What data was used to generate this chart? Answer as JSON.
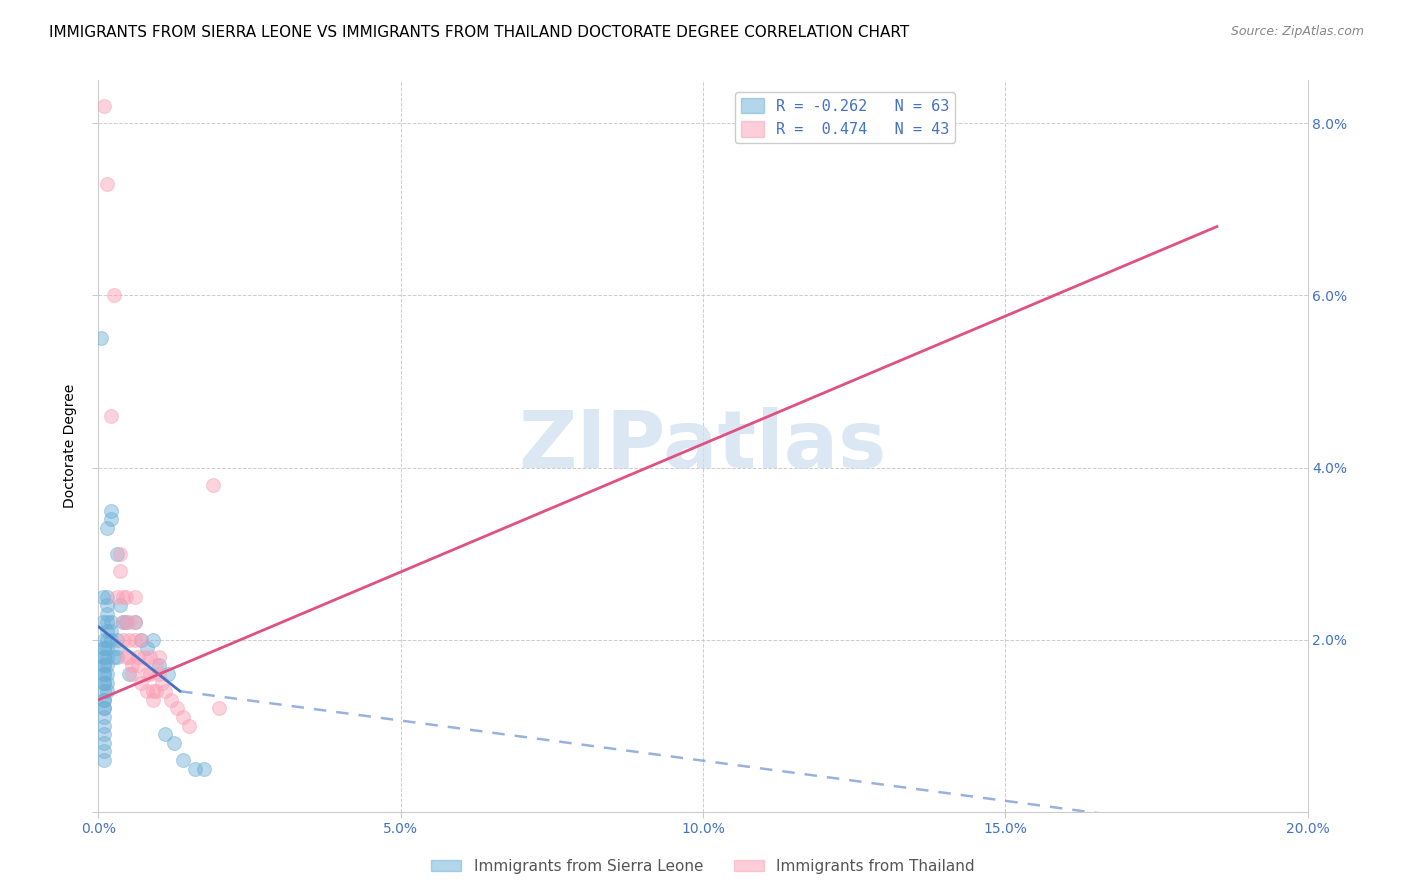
{
  "title": "IMMIGRANTS FROM SIERRA LEONE VS IMMIGRANTS FROM THAILAND DOCTORATE DEGREE CORRELATION CHART",
  "source": "Source: ZipAtlas.com",
  "ylabel": "Doctorate Degree",
  "watermark": "ZIPatlas",
  "xlim": [
    0.0,
    0.2
  ],
  "ylim": [
    0.0,
    0.085
  ],
  "xticks": [
    0.0,
    0.05,
    0.1,
    0.15,
    0.2
  ],
  "yticks": [
    0.0,
    0.02,
    0.04,
    0.06,
    0.08
  ],
  "blue_scatter": [
    [
      0.0005,
      0.055
    ],
    [
      0.0008,
      0.025
    ],
    [
      0.0008,
      0.022
    ],
    [
      0.001,
      0.02
    ],
    [
      0.001,
      0.019
    ],
    [
      0.001,
      0.019
    ],
    [
      0.001,
      0.018
    ],
    [
      0.001,
      0.018
    ],
    [
      0.001,
      0.017
    ],
    [
      0.001,
      0.017
    ],
    [
      0.001,
      0.016
    ],
    [
      0.001,
      0.016
    ],
    [
      0.001,
      0.015
    ],
    [
      0.001,
      0.015
    ],
    [
      0.001,
      0.014
    ],
    [
      0.001,
      0.013
    ],
    [
      0.001,
      0.013
    ],
    [
      0.001,
      0.012
    ],
    [
      0.001,
      0.012
    ],
    [
      0.001,
      0.011
    ],
    [
      0.001,
      0.01
    ],
    [
      0.001,
      0.009
    ],
    [
      0.001,
      0.008
    ],
    [
      0.001,
      0.007
    ],
    [
      0.001,
      0.006
    ],
    [
      0.0015,
      0.033
    ],
    [
      0.0015,
      0.025
    ],
    [
      0.0015,
      0.024
    ],
    [
      0.0015,
      0.023
    ],
    [
      0.0015,
      0.022
    ],
    [
      0.0015,
      0.021
    ],
    [
      0.0015,
      0.02
    ],
    [
      0.0015,
      0.019
    ],
    [
      0.0015,
      0.018
    ],
    [
      0.0015,
      0.017
    ],
    [
      0.0015,
      0.016
    ],
    [
      0.0015,
      0.015
    ],
    [
      0.0015,
      0.014
    ],
    [
      0.002,
      0.035
    ],
    [
      0.002,
      0.034
    ],
    [
      0.002,
      0.022
    ],
    [
      0.002,
      0.021
    ],
    [
      0.002,
      0.02
    ],
    [
      0.0025,
      0.018
    ],
    [
      0.003,
      0.03
    ],
    [
      0.003,
      0.02
    ],
    [
      0.003,
      0.019
    ],
    [
      0.003,
      0.018
    ],
    [
      0.0035,
      0.024
    ],
    [
      0.004,
      0.022
    ],
    [
      0.0045,
      0.022
    ],
    [
      0.005,
      0.016
    ],
    [
      0.006,
      0.022
    ],
    [
      0.007,
      0.02
    ],
    [
      0.008,
      0.019
    ],
    [
      0.009,
      0.02
    ],
    [
      0.01,
      0.017
    ],
    [
      0.011,
      0.009
    ],
    [
      0.0115,
      0.016
    ],
    [
      0.0125,
      0.008
    ],
    [
      0.014,
      0.006
    ],
    [
      0.016,
      0.005
    ],
    [
      0.0175,
      0.005
    ]
  ],
  "pink_scatter": [
    [
      0.001,
      0.082
    ],
    [
      0.0015,
      0.073
    ],
    [
      0.002,
      0.046
    ],
    [
      0.0025,
      0.06
    ],
    [
      0.003,
      0.025
    ],
    [
      0.0035,
      0.03
    ],
    [
      0.0035,
      0.028
    ],
    [
      0.004,
      0.025
    ],
    [
      0.004,
      0.022
    ],
    [
      0.004,
      0.02
    ],
    [
      0.0045,
      0.018
    ],
    [
      0.0045,
      0.025
    ],
    [
      0.005,
      0.022
    ],
    [
      0.005,
      0.02
    ],
    [
      0.005,
      0.018
    ],
    [
      0.0055,
      0.017
    ],
    [
      0.0055,
      0.016
    ],
    [
      0.006,
      0.025
    ],
    [
      0.006,
      0.022
    ],
    [
      0.006,
      0.02
    ],
    [
      0.0065,
      0.018
    ],
    [
      0.0065,
      0.017
    ],
    [
      0.007,
      0.015
    ],
    [
      0.007,
      0.02
    ],
    [
      0.0075,
      0.018
    ],
    [
      0.008,
      0.016
    ],
    [
      0.008,
      0.014
    ],
    [
      0.0085,
      0.018
    ],
    [
      0.0085,
      0.016
    ],
    [
      0.009,
      0.014
    ],
    [
      0.009,
      0.013
    ],
    [
      0.0095,
      0.017
    ],
    [
      0.0095,
      0.014
    ],
    [
      0.01,
      0.018
    ],
    [
      0.01,
      0.016
    ],
    [
      0.0105,
      0.015
    ],
    [
      0.011,
      0.014
    ],
    [
      0.012,
      0.013
    ],
    [
      0.013,
      0.012
    ],
    [
      0.014,
      0.011
    ],
    [
      0.015,
      0.01
    ],
    [
      0.019,
      0.038
    ],
    [
      0.02,
      0.012
    ]
  ],
  "blue_line_solid": {
    "x": [
      0.0,
      0.0135
    ],
    "y": [
      0.0215,
      0.014
    ]
  },
  "blue_line_dashed": {
    "x": [
      0.0135,
      0.185
    ],
    "y": [
      0.014,
      -0.002
    ]
  },
  "pink_line": {
    "x": [
      0.0,
      0.185
    ],
    "y": [
      0.013,
      0.068
    ]
  },
  "blue_dot_color": "#6baed6",
  "pink_dot_color": "#fa9fb5",
  "blue_line_color": "#4472c4",
  "pink_line_color": "#e05080",
  "background_color": "#ffffff",
  "grid_color": "#c8c8c8",
  "tick_color": "#4472c4",
  "title_fontsize": 11,
  "axis_label_fontsize": 10,
  "tick_fontsize": 10,
  "legend_r1": "R = -0.262   N = 63",
  "legend_r2": "R =  0.474   N = 43",
  "legend_label1": "Immigrants from Sierra Leone",
  "legend_label2": "Immigrants from Thailand"
}
